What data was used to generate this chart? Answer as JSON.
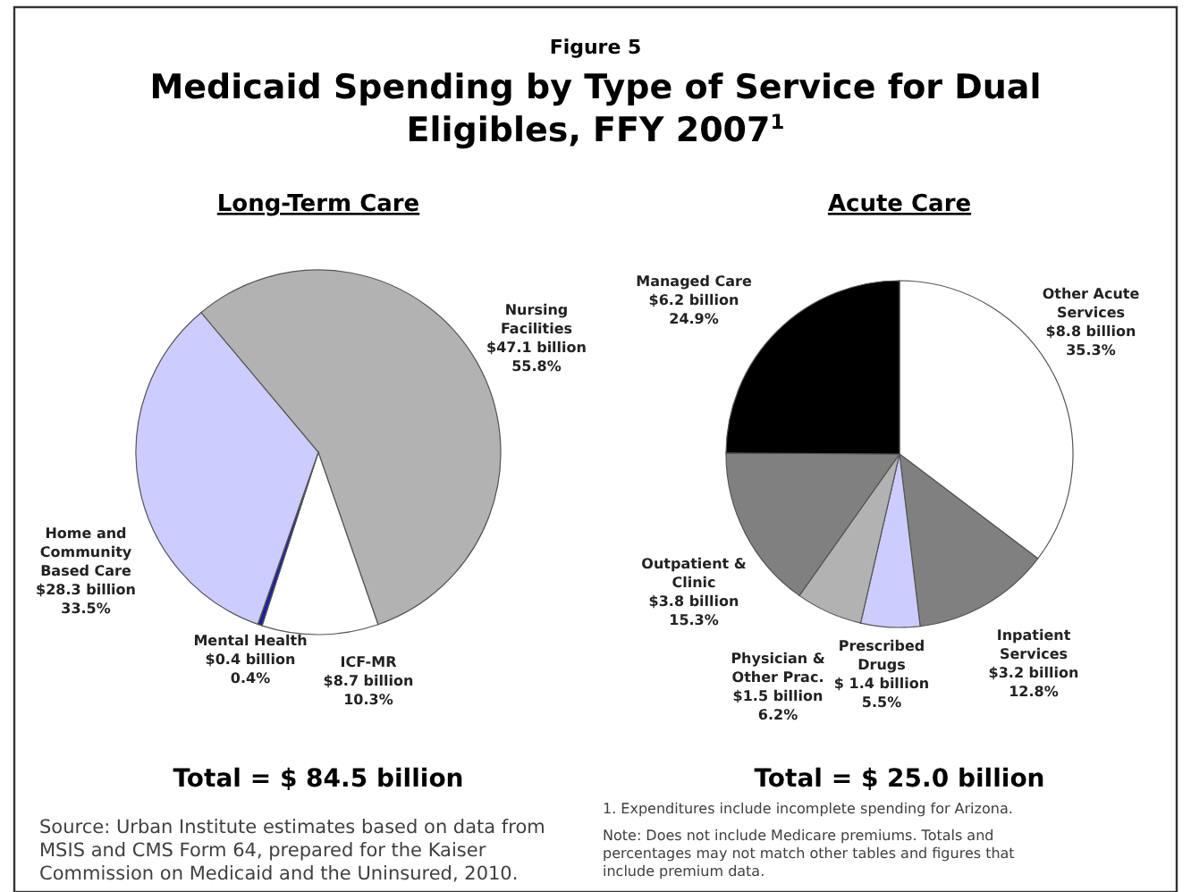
{
  "chart_data": [
    {
      "type": "other",
      "subtitle": "Figure 5",
      "title": "Medicaid Spending by Type of Service for Dual Eligibles, FFY 2007$^{1}$",
      "annotations": [
        "Source: Urban Institute estimates based on data from MSIS and CMS Form 64, prepared for the Kaiser Commission on Medicaid and the Uninsured, 2010.",
        "1. Expenditures include incomplete spending for Arizona.",
        "Note: Does not include Medicare premiums.  Totals and percentages may not match other tables and figures that include premium data."
      ]
    },
    {
      "type": "pie",
      "title": "Long-Term Care",
      "categories": [
        "Nursing Facilities\n$47.1 billion",
        "ICF-MR\n$8.7 billion",
        "Mental Health\n$0.4 billion",
        "Home and Community Based Care\n$28.3 billion"
      ],
      "values": [
        55.8,
        10.3,
        0.4,
        33.5
      ],
      "colors": [
        "#b2b2b2",
        "#ffffff",
        "#1f1f9f",
        "#ccccff"
      ],
      "value_labels": [
        "55.8%",
        "10.3%",
        "0.4%",
        "33.5%"
      ],
      "annotations": [
        "Total = $ 84.5 billion"
      ]
    },
    {
      "type": "pie",
      "title": "Acute Care",
      "categories": [
        "Other Acute Services\n$8.8 billion",
        "Inpatient Services\n$3.2 billion",
        "Prescribed Drugs\n$ 1.4 billion",
        "Physician & Other Prac.\n$1.5 billion",
        "Outpatient & Clinic\n$3.8 billion",
        "Managed Care\n$6.2 billion"
      ],
      "values": [
        35.3,
        12.8,
        5.5,
        6.2,
        15.3,
        24.9
      ],
      "colors": [
        "#ffffff",
        "#808080",
        "#ccccff",
        "#b2b2b2",
        "#808080",
        "#000000"
      ],
      "value_labels": [
        "35.3%",
        "12.8%",
        "5.5%",
        "6.2%",
        "15.3%",
        "24.9%"
      ],
      "annotations": [
        "Total = $ 25.0 billion"
      ]
    }
  ]
}
